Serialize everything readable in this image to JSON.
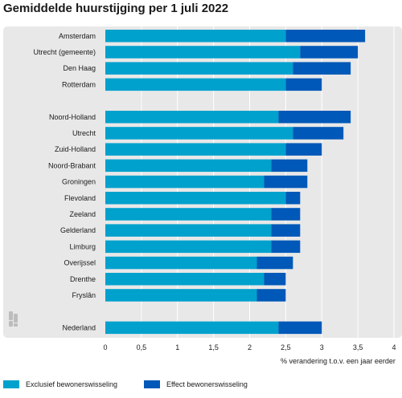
{
  "chart_data": {
    "type": "bar",
    "orientation": "horizontal",
    "stacked": true,
    "title": "Gemiddelde huurstijging per 1 juli 2022",
    "xlabel": "% verandering t.o.v. een jaar eerder",
    "xlim": [
      0,
      4
    ],
    "xticks": [
      "0",
      "0,5",
      "1",
      "1,5",
      "2",
      "2,5",
      "3",
      "3,5",
      "4"
    ],
    "grid": true,
    "legend_position": "bottom",
    "categories": [
      "Amsterdam",
      "Utrecht (gemeente)",
      "Den Haag",
      "Rotterdam",
      "Noord-Holland",
      "Utrecht",
      "Zuid-Holland",
      "Noord-Brabant",
      "Groningen",
      "Flevoland",
      "Zeeland",
      "Gelderland",
      "Limburg",
      "Overijssel",
      "Drenthe",
      "Fryslân",
      "Nederland"
    ],
    "groups": [
      0,
      0,
      0,
      0,
      1,
      1,
      1,
      1,
      1,
      1,
      1,
      1,
      1,
      1,
      1,
      1,
      2
    ],
    "series": [
      {
        "name": "Exclusief bewonerswisseling",
        "color": "#00a1cd",
        "values": [
          2.5,
          2.7,
          2.6,
          2.5,
          2.4,
          2.6,
          2.5,
          2.3,
          2.2,
          2.5,
          2.3,
          2.3,
          2.3,
          2.1,
          2.2,
          2.1,
          2.4
        ]
      },
      {
        "name": "Effect bewonerswisseling",
        "color": "#0058b8",
        "values": [
          1.1,
          0.8,
          0.8,
          0.5,
          1.0,
          0.7,
          0.5,
          0.5,
          0.6,
          0.2,
          0.4,
          0.4,
          0.4,
          0.5,
          0.3,
          0.4,
          0.6
        ]
      }
    ]
  },
  "colors": {
    "panel_background": "#e8e8e8",
    "gridline": "#ffffff",
    "text": "#1a1a1a"
  },
  "logo_icon": "cbs-logo-icon"
}
